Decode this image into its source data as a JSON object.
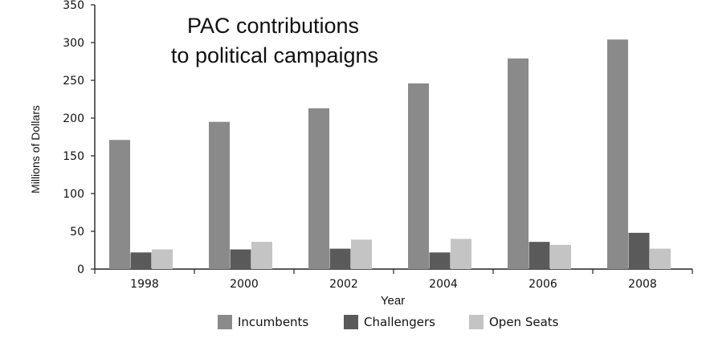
{
  "chart_data": {
    "type": "bar",
    "title_lines": [
      "PAC contributions",
      "to political campaigns"
    ],
    "xlabel": "Year",
    "ylabel": "Millions of Dollars",
    "categories": [
      "1998",
      "2000",
      "2002",
      "2004",
      "2006",
      "2008"
    ],
    "ylim": [
      0,
      350
    ],
    "yticks": [
      0,
      50,
      100,
      150,
      200,
      250,
      300,
      350
    ],
    "grid": false,
    "legend_position": "bottom",
    "series": [
      {
        "name": "Incumbents",
        "color": "#8a8a8a",
        "values": [
          171,
          195,
          213,
          246,
          279,
          304
        ]
      },
      {
        "name": "Challengers",
        "color": "#5a5a5a",
        "values": [
          22,
          26,
          27,
          22,
          36,
          48
        ]
      },
      {
        "name": "Open Seats",
        "color": "#c4c4c4",
        "values": [
          26,
          36,
          39,
          40,
          32,
          27
        ]
      }
    ]
  }
}
